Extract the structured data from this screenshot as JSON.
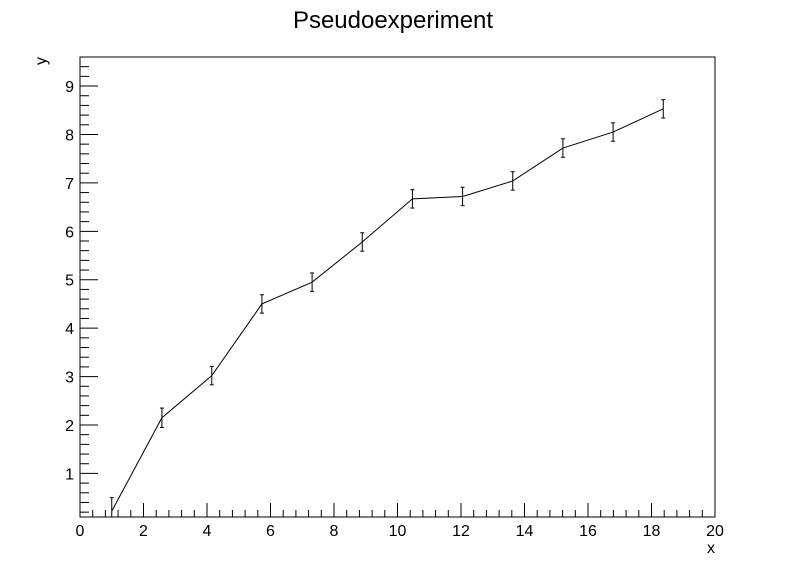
{
  "chart_data": {
    "type": "line",
    "title": "Pseudoexperiment",
    "xlabel": "x",
    "ylabel": "y",
    "xlim": [
      0,
      20
    ],
    "ylim": [
      0.1,
      9.6
    ],
    "x_ticks": [
      0,
      2,
      4,
      6,
      8,
      10,
      12,
      14,
      16,
      18,
      20
    ],
    "y_ticks": [
      1,
      2,
      3,
      4,
      5,
      6,
      7,
      8,
      9
    ],
    "grid": false,
    "legend": "none",
    "series": [
      {
        "x": [
          1.0,
          2.58,
          4.15,
          5.73,
          7.31,
          8.89,
          10.47,
          12.05,
          13.63,
          15.21,
          16.79,
          18.37
        ],
        "y": [
          0.22,
          2.15,
          3.02,
          4.5,
          4.95,
          5.78,
          6.67,
          6.72,
          7.04,
          7.72,
          8.05,
          8.53
        ],
        "yerr": [
          0.28,
          0.2,
          0.19,
          0.19,
          0.19,
          0.19,
          0.19,
          0.19,
          0.19,
          0.19,
          0.19,
          0.19
        ],
        "color": "#000000"
      }
    ]
  }
}
